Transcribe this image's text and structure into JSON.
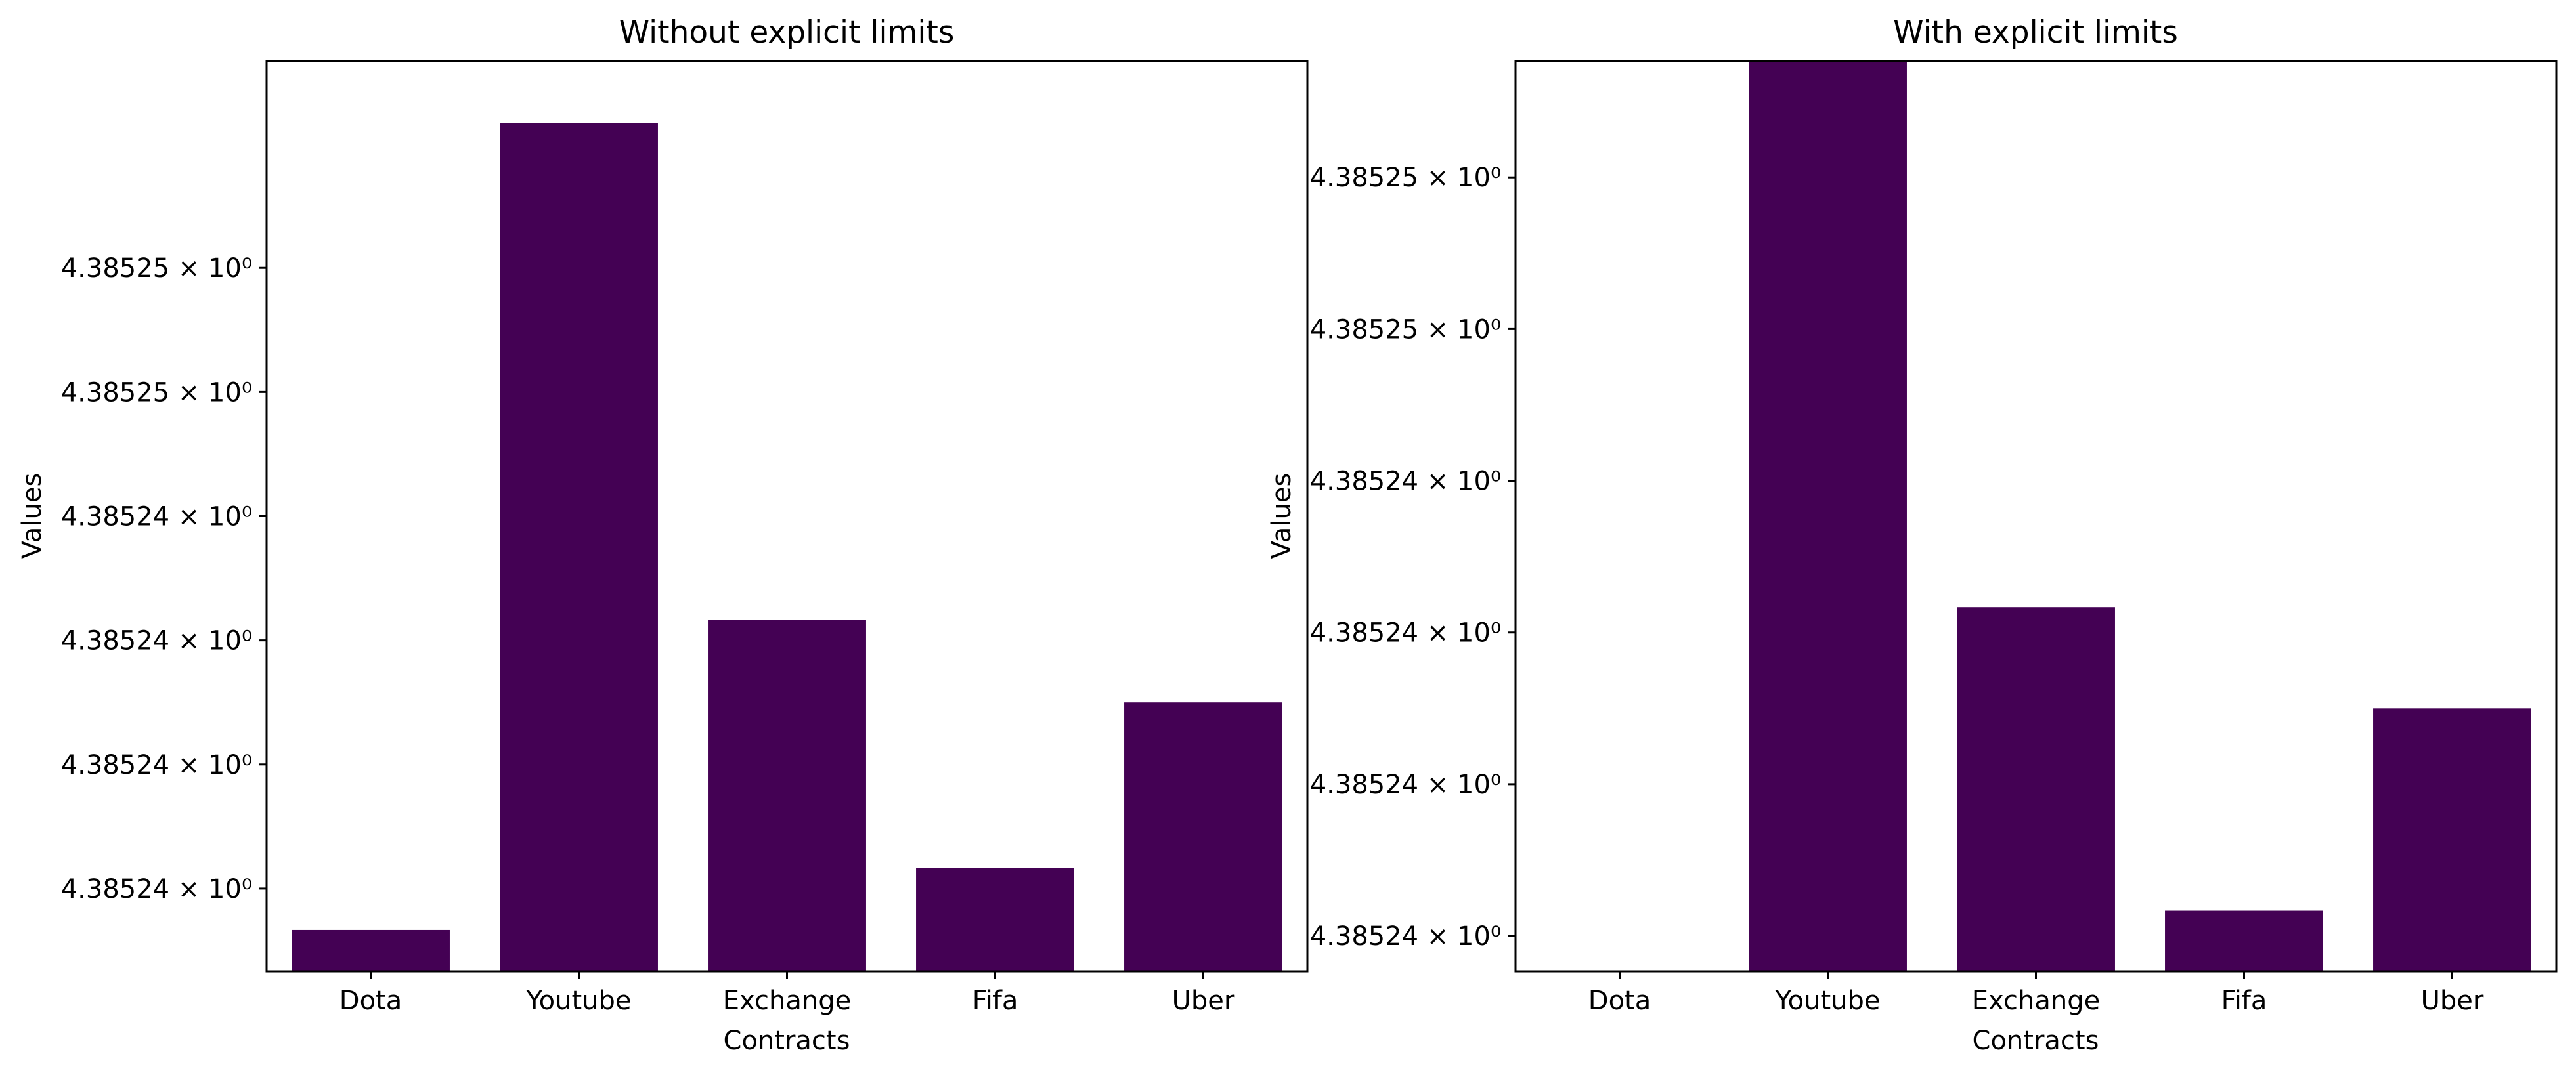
{
  "chart_data": [
    {
      "type": "bar",
      "title": "Without explicit limits",
      "xlabel": "Contracts",
      "ylabel": "Values",
      "categories": [
        "Dota",
        "Youtube",
        "Exchange",
        "Fifa",
        "Uber"
      ],
      "values": [
        4.385237,
        4.3852565,
        4.3852445,
        4.3852385,
        4.3852425
      ],
      "ylim": [
        4.385236,
        4.385258
      ],
      "yticks": [
        {
          "value": 4.385238,
          "label": "4.38524 × 10⁰"
        },
        {
          "value": 4.385241,
          "label": "4.38524 × 10⁰"
        },
        {
          "value": 4.385244,
          "label": "4.38524 × 10⁰"
        },
        {
          "value": 4.385247,
          "label": "4.38524 × 10⁰"
        },
        {
          "value": 4.38525,
          "label": "4.38525 × 10⁰"
        },
        {
          "value": 4.385253,
          "label": "4.38525 × 10⁰"
        }
      ],
      "color": "#440154",
      "grid": false
    },
    {
      "type": "bar",
      "title": "With explicit limits",
      "xlabel": "Contracts",
      "ylabel": "Values",
      "categories": [
        "Dota",
        "Youtube",
        "Exchange",
        "Fifa",
        "Uber"
      ],
      "values": [
        4.385237,
        4.3852565,
        4.3852445,
        4.3852385,
        4.3852425
      ],
      "ylim": [
        4.3852373,
        4.3852553
      ],
      "yticks": [
        {
          "value": 4.385238,
          "label": "4.38524 × 10⁰"
        },
        {
          "value": 4.385241,
          "label": "4.38524 × 10⁰"
        },
        {
          "value": 4.385244,
          "label": "4.38524 × 10⁰"
        },
        {
          "value": 4.385247,
          "label": "4.38524 × 10⁰"
        },
        {
          "value": 4.38525,
          "label": "4.38525 × 10⁰"
        },
        {
          "value": 4.385253,
          "label": "4.38525 × 10⁰"
        }
      ],
      "color": "#440154",
      "grid": false
    }
  ]
}
